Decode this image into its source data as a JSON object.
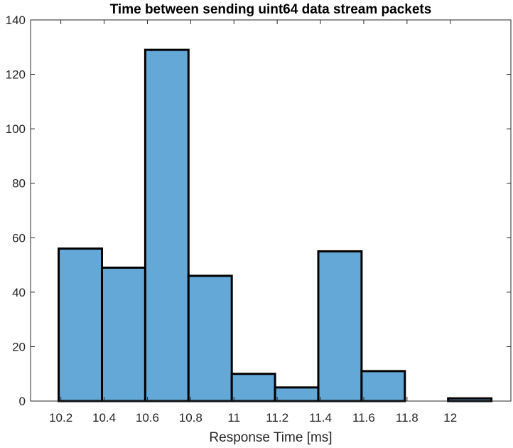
{
  "chart_data": {
    "type": "bar",
    "subtype": "histogram",
    "title": "Time between sending uint64 data stream packets",
    "xlabel": "Response Time [ms]",
    "ylabel": "",
    "bin_edges": [
      10.19,
      10.39,
      10.59,
      10.79,
      10.99,
      11.19,
      11.39,
      11.59,
      11.79,
      11.99,
      12.19
    ],
    "values": [
      56,
      49,
      129,
      46,
      10,
      5,
      55,
      11,
      0,
      1
    ],
    "xlim": [
      10.06,
      12.28
    ],
    "ylim": [
      0,
      140
    ],
    "xticks": [
      10.2,
      10.4,
      10.6,
      10.8,
      11,
      11.2,
      11.4,
      11.6,
      11.8,
      12
    ],
    "xtick_labels": [
      "10.2",
      "10.4",
      "10.6",
      "10.8",
      "11",
      "11.2",
      "11.4",
      "11.6",
      "11.8",
      "12"
    ],
    "yticks": [
      0,
      20,
      40,
      60,
      80,
      100,
      120,
      140
    ],
    "ytick_labels": [
      "0",
      "20",
      "40",
      "60",
      "80",
      "100",
      "120",
      "140"
    ],
    "grid": false,
    "box": true,
    "bar_color": "#64a8d8",
    "edge_color": "#000000",
    "axis_color": "#262626"
  }
}
